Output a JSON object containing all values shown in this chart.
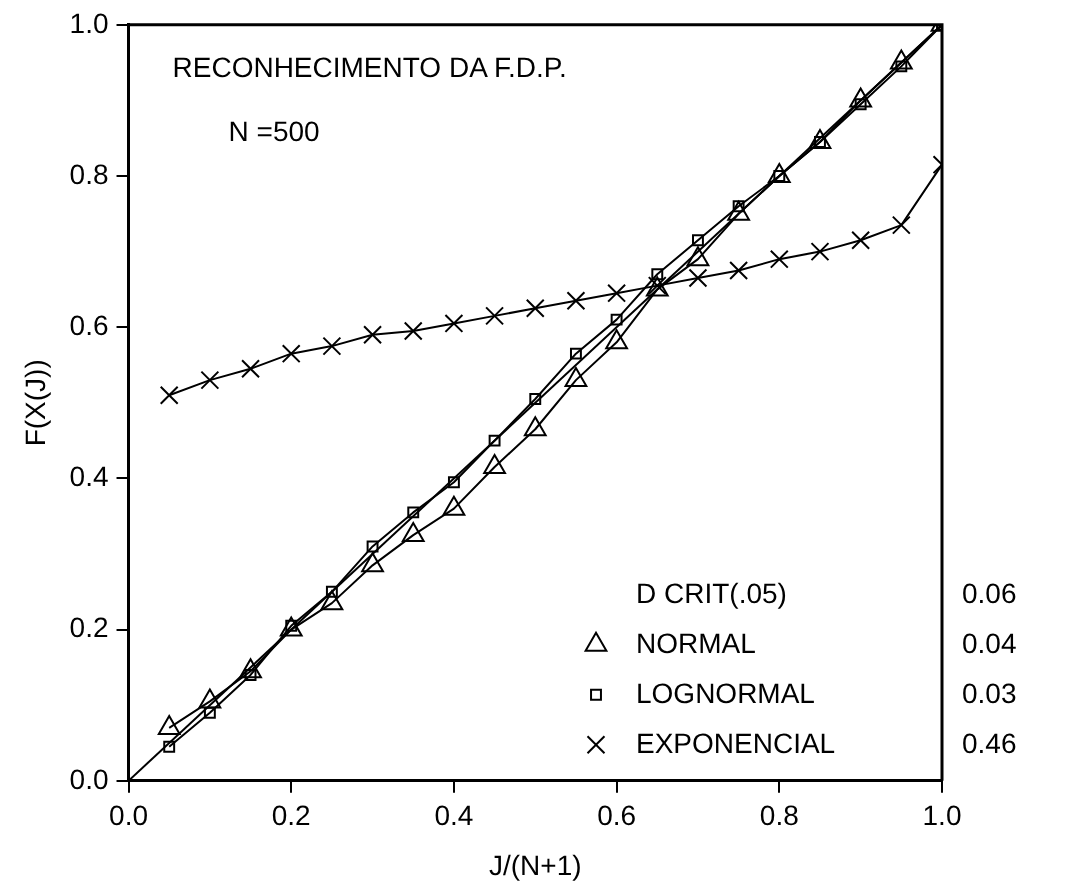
{
  "chart_data": {
    "type": "line",
    "title": "RECONHECIMENTO DA F.D.P.",
    "subtitle": "N =500",
    "xlabel": "J/(N+1)",
    "ylabel": "F(X(J))",
    "legend_title": "D CRIT(.05)",
    "annotations": [
      "0.06",
      "0.04",
      "0.03",
      "0.46"
    ],
    "x": [
      0.05,
      0.1,
      0.15,
      0.2,
      0.25,
      0.3,
      0.35,
      0.4,
      0.45,
      0.5,
      0.55,
      0.6,
      0.65,
      0.7,
      0.75,
      0.8,
      0.85,
      0.9,
      0.95,
      1.0
    ],
    "xlim": [
      0,
      1
    ],
    "ylim": [
      0,
      1
    ],
    "xticks": [
      {
        "value": 0,
        "label": "0.0"
      },
      {
        "value": 0.2,
        "label": "0.2"
      },
      {
        "value": 0.4,
        "label": "0.4"
      },
      {
        "value": 0.6,
        "label": "0.6"
      },
      {
        "value": 0.8,
        "label": "0.8"
      },
      {
        "value": 1,
        "label": "1.0"
      }
    ],
    "yticks": [
      {
        "value": 0,
        "label": "0.0"
      },
      {
        "value": 0.2,
        "label": "0.2"
      },
      {
        "value": 0.4,
        "label": "0.4"
      },
      {
        "value": 0.6,
        "label": "0.6"
      },
      {
        "value": 0.8,
        "label": "0.8"
      },
      {
        "value": 1,
        "label": "1.0"
      }
    ],
    "grid": false,
    "legend": "bottom right",
    "line_style": "solid",
    "series": [
      {
        "name": "NORMAL",
        "color": "#000000",
        "marker": "triangle",
        "values": [
          0.07,
          0.105,
          0.145,
          0.2,
          0.235,
          0.285,
          0.325,
          0.36,
          0.415,
          0.465,
          0.53,
          0.58,
          0.65,
          0.69,
          0.75,
          0.8,
          0.845,
          0.9,
          0.95,
          1.0
        ]
      },
      {
        "name": "LOGNORMAL",
        "color": "#000000",
        "marker": "square",
        "values": [
          0.045,
          0.09,
          0.14,
          0.205,
          0.25,
          0.31,
          0.355,
          0.395,
          0.45,
          0.505,
          0.565,
          0.61,
          0.67,
          0.715,
          0.76,
          0.8,
          0.845,
          0.895,
          0.945,
          1.0
        ]
      },
      {
        "name": "EXPONENCIAL",
        "color": "#000000",
        "marker": "cross",
        "values": [
          0.51,
          0.53,
          0.545,
          0.565,
          0.575,
          0.59,
          0.595,
          0.605,
          0.615,
          0.625,
          0.635,
          0.645,
          0.655,
          0.665,
          0.675,
          0.69,
          0.7,
          0.715,
          0.735,
          0.815
        ]
      },
      {
        "color": "#000000",
        "marker": "none",
        "x": [
          0,
          1
        ],
        "values": [
          0,
          1
        ]
      }
    ]
  }
}
